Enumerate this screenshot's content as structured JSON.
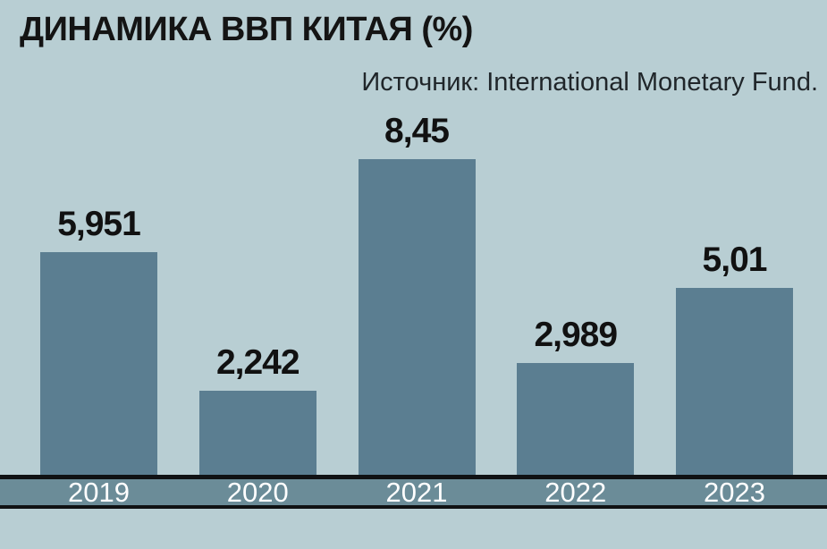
{
  "title": "ДИНАМИКА ВВП КИТАЯ (%)",
  "source": "Источник: International Monetary Fund.",
  "colors": {
    "background": "#b8ced3",
    "bar": "#5b7e91",
    "axis_band": "#6b8c98",
    "axis_border": "#101214",
    "value_text": "#111111",
    "year_text": "#ffffff"
  },
  "chart_data": {
    "type": "bar",
    "title": "ДИНАМИКА ВВП КИТАЯ (%)",
    "source": "Источник: International Monetary Fund.",
    "categories": [
      "2019",
      "2020",
      "2021",
      "2022",
      "2023"
    ],
    "values": [
      5.951,
      2.242,
      8.45,
      2.989,
      5.01
    ],
    "value_labels": [
      "5,951",
      "2,242",
      "8,45",
      "2,989",
      "5,01"
    ],
    "xlabel": "",
    "ylabel": "",
    "ylim": [
      0,
      8.45
    ],
    "grid": false,
    "legend": false
  }
}
